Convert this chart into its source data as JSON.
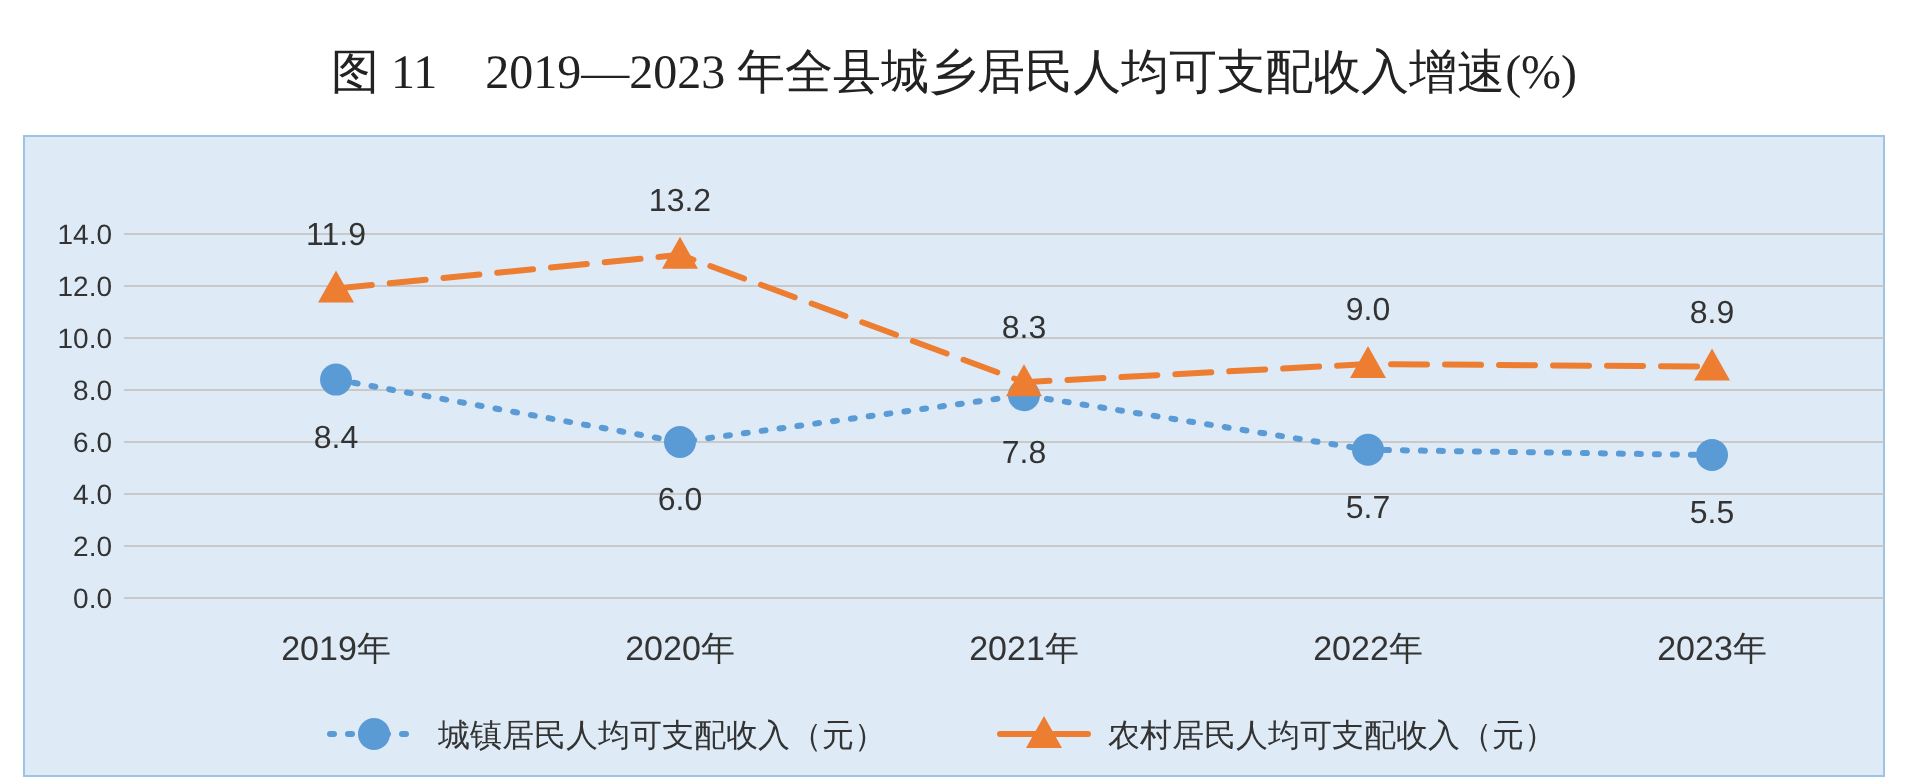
{
  "chart_data": {
    "type": "line",
    "title": "图 11　2019—2023 年全县城乡居民人均可支配收入增速(%)",
    "categories": [
      "2019年",
      "2020年",
      "2021年",
      "2022年",
      "2023年"
    ],
    "series": [
      {
        "name": "城镇居民人均可支配收入（元）",
        "color": "#5b9bd5",
        "values": [
          8.4,
          6.0,
          7.8,
          5.7,
          5.5
        ],
        "value_labels": [
          "8.4",
          "6.0",
          "7.8",
          "5.7",
          "5.5"
        ],
        "marker": "circle",
        "line_style": "dotted"
      },
      {
        "name": "农村居民人均可支配收入（元）",
        "color": "#ed7d31",
        "values": [
          11.9,
          13.2,
          8.3,
          9.0,
          8.9
        ],
        "value_labels": [
          "11.9",
          "13.2",
          "8.3",
          "9.0",
          "8.9"
        ],
        "marker": "triangle",
        "line_style": "dashed"
      }
    ],
    "ylim": [
      0,
      14
    ],
    "yticks": [
      {
        "value": 0,
        "label": "0.0"
      },
      {
        "value": 2,
        "label": "2.0"
      },
      {
        "value": 4,
        "label": "4.0"
      },
      {
        "value": 6,
        "label": "6.0"
      },
      {
        "value": 8,
        "label": "8.0"
      },
      {
        "value": 10,
        "label": "10.0"
      },
      {
        "value": 12,
        "label": "12.0"
      },
      {
        "value": 14,
        "label": "14.0"
      }
    ],
    "grid": "y",
    "legend": "bottom"
  }
}
